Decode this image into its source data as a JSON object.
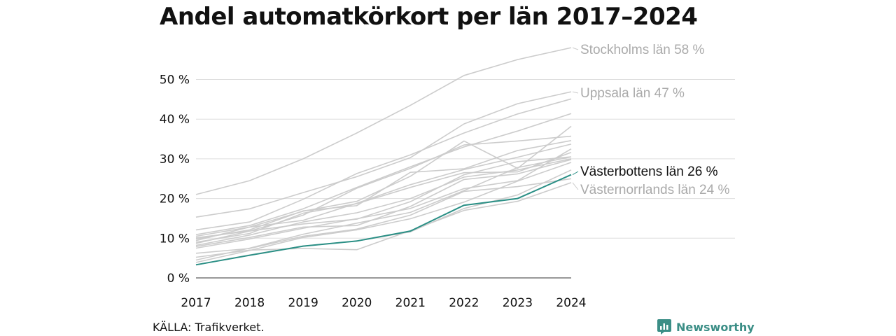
{
  "title": "Andel automatkörkort per län 2017–2024",
  "source": "KÄLLA: Trafikverket.",
  "brand": {
    "name": "Newsworthy",
    "icon": "newsworthy-logo-icon"
  },
  "colors": {
    "background": "#eeeeee",
    "highlight": "#2a8f85",
    "label": "#aaaaaa",
    "grid": "#dddddd"
  },
  "chart_data": {
    "type": "line",
    "title": "Andel automatkörkort per län 2017–2024",
    "x": [
      "2017",
      "2018",
      "2019",
      "2020",
      "2021",
      "2022",
      "2023",
      "2024"
    ],
    "y_ticks": [
      "0 %",
      "10 %",
      "20 %",
      "30 %",
      "40 %",
      "50 %"
    ],
    "ylim": [
      0,
      58
    ],
    "grid": "horizontal",
    "highlight": "Västerbottens län",
    "labels": [
      {
        "text": "Stockholms län 58 %",
        "series": "Stockholms län",
        "color": "#aaaaaa"
      },
      {
        "text": "Uppsala län 47 %",
        "series": "Uppsala län",
        "color": "#aaaaaa"
      },
      {
        "text": "Västerbottens län 26 %",
        "series": "Västerbottens län",
        "color": "#111111"
      },
      {
        "text": "Västernorrlands län 24 %",
        "series": "Västernorrlands län",
        "color": "#aaaaaa"
      }
    ],
    "series": [
      {
        "name": "Stockholms län",
        "values": [
          21,
          24.5,
          30,
          36.5,
          43.5,
          51,
          55,
          58
        ]
      },
      {
        "name": "Uppsala län",
        "values": [
          15.3,
          17.4,
          21.5,
          25.5,
          30.3,
          38.8,
          43.9,
          46.9
        ]
      },
      {
        "name": "",
        "values": [
          12.1,
          14.1,
          19.8,
          26.3,
          31,
          36.5,
          41.3,
          45.1
        ]
      },
      {
        "name": "",
        "values": [
          10.9,
          13.2,
          17.4,
          22.8,
          28,
          33,
          37,
          41.4
        ]
      },
      {
        "name": "",
        "values": [
          10.5,
          12.8,
          16.8,
          19.3,
          25.6,
          34.5,
          27.6,
          38.2
        ]
      },
      {
        "name": "",
        "values": [
          10.1,
          11.8,
          15.8,
          22.6,
          27.6,
          33.5,
          34.5,
          35.7
        ]
      },
      {
        "name": "",
        "values": [
          9.8,
          12.1,
          16.9,
          18.2,
          26.6,
          27.5,
          32.1,
          34.6
        ]
      },
      {
        "name": "",
        "values": [
          9.4,
          12.8,
          14.5,
          18.8,
          23.5,
          27.3,
          30.4,
          33.7
        ]
      },
      {
        "name": "",
        "values": [
          9,
          11.2,
          16.3,
          18.7,
          22.8,
          26.5,
          26.7,
          31.6
        ]
      },
      {
        "name": "",
        "values": [
          8.7,
          11.8,
          13.6,
          14.8,
          19.2,
          26,
          29.3,
          30.5
        ]
      },
      {
        "name": "",
        "values": [
          8.2,
          10.8,
          14.1,
          16.4,
          20,
          25.4,
          27.2,
          30
        ]
      },
      {
        "name": "",
        "values": [
          7.9,
          10.2,
          12.8,
          13.2,
          18,
          24.8,
          26.2,
          29.8
        ]
      },
      {
        "name": "",
        "values": [
          7.5,
          9.8,
          12.5,
          14.9,
          17.5,
          22.5,
          24.5,
          32.5
        ]
      },
      {
        "name": "",
        "values": [
          6.2,
          7.4,
          10.5,
          12.3,
          15.8,
          21.8,
          23,
          25
        ]
      },
      {
        "name": "Västernorrlands län",
        "values": [
          5.2,
          7,
          7.4,
          7.1,
          11.9,
          17,
          19.3,
          24
        ]
      },
      {
        "name": "",
        "values": [
          4.5,
          7.5,
          11,
          13.8,
          16.5,
          22,
          27.8,
          30.5
        ]
      },
      {
        "name": "",
        "values": [
          3.9,
          6.9,
          10.2,
          12.1,
          14.9,
          19.1,
          24.4,
          29.1
        ]
      },
      {
        "name": "",
        "values": [
          3.3,
          5.8,
          8,
          9.3,
          11.6,
          17.5,
          20.9,
          27.2
        ]
      },
      {
        "name": "Västerbottens län",
        "values": [
          3.3,
          5.7,
          8,
          9.3,
          11.8,
          18.3,
          20,
          26
        ]
      }
    ]
  }
}
